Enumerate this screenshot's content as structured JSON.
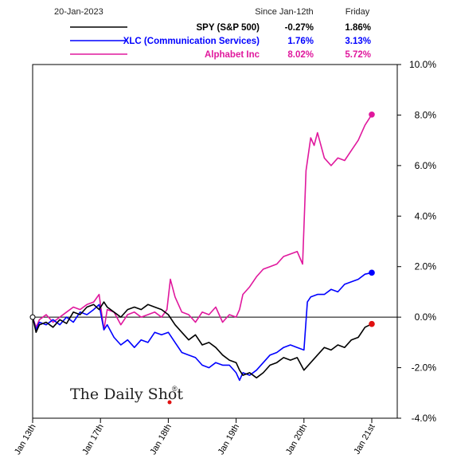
{
  "header": {
    "date": "20-Jan-2023",
    "col_since": "Since Jan-12th",
    "col_friday": "Friday"
  },
  "watermark": "The Daily Shot",
  "watermark_mark": "®",
  "chart_data": {
    "type": "line",
    "ylim": [
      -4.0,
      10.0
    ],
    "y_ticks": [
      "10.0%",
      "8.0%",
      "6.0%",
      "4.0%",
      "2.0%",
      "0.0%",
      "-2.0%",
      "-4.0%"
    ],
    "y_tick_values": [
      10,
      8,
      6,
      4,
      2,
      0,
      -2,
      -4
    ],
    "x_ticks": [
      "Jan 13th",
      "Jan 17th",
      "Jan 18th",
      "Jan 19th",
      "Jan 20th",
      "Jan 21st"
    ],
    "xlim": [
      0,
      5
    ],
    "grid": false,
    "legend_position": "top",
    "series": [
      {
        "name": "SPY (S&P 500)",
        "since": "-0.27%",
        "friday": "1.86%",
        "color": "#000000",
        "values": [
          [
            0,
            0
          ],
          [
            0.05,
            -0.6
          ],
          [
            0.1,
            -0.3
          ],
          [
            0.2,
            -0.2
          ],
          [
            0.3,
            -0.4
          ],
          [
            0.4,
            -0.1
          ],
          [
            0.5,
            -0.25
          ],
          [
            0.6,
            0.2
          ],
          [
            0.7,
            0.1
          ],
          [
            0.8,
            0.4
          ],
          [
            0.9,
            0.5
          ],
          [
            0.98,
            0.3
          ],
          [
            1.05,
            0.6
          ],
          [
            1.1,
            0.4
          ],
          [
            1.2,
            0.2
          ],
          [
            1.3,
            0.0
          ],
          [
            1.4,
            0.3
          ],
          [
            1.5,
            0.4
          ],
          [
            1.6,
            0.3
          ],
          [
            1.7,
            0.5
          ],
          [
            1.8,
            0.4
          ],
          [
            1.9,
            0.3
          ],
          [
            2.0,
            0.1
          ],
          [
            2.1,
            -0.3
          ],
          [
            2.2,
            -0.6
          ],
          [
            2.3,
            -0.9
          ],
          [
            2.4,
            -0.7
          ],
          [
            2.5,
            -1.1
          ],
          [
            2.6,
            -1.0
          ],
          [
            2.7,
            -1.2
          ],
          [
            2.8,
            -1.5
          ],
          [
            2.9,
            -1.7
          ],
          [
            3.0,
            -1.8
          ],
          [
            3.05,
            -2.1
          ],
          [
            3.1,
            -2.3
          ],
          [
            3.2,
            -2.2
          ],
          [
            3.3,
            -2.4
          ],
          [
            3.4,
            -2.2
          ],
          [
            3.5,
            -1.9
          ],
          [
            3.6,
            -1.8
          ],
          [
            3.7,
            -1.6
          ],
          [
            3.8,
            -1.7
          ],
          [
            3.9,
            -1.6
          ],
          [
            4.0,
            -2.1
          ],
          [
            4.1,
            -1.8
          ],
          [
            4.2,
            -1.5
          ],
          [
            4.3,
            -1.2
          ],
          [
            4.4,
            -1.3
          ],
          [
            4.5,
            -1.1
          ],
          [
            4.6,
            -1.2
          ],
          [
            4.7,
            -0.9
          ],
          [
            4.8,
            -0.8
          ],
          [
            4.9,
            -0.4
          ],
          [
            5.0,
            -0.27
          ]
        ]
      },
      {
        "name": "XLC (Communication Services)",
        "since": "1.76%",
        "friday": "3.13%",
        "color": "#0000ff",
        "values": [
          [
            0,
            0
          ],
          [
            0.05,
            -0.5
          ],
          [
            0.1,
            -0.2
          ],
          [
            0.2,
            -0.3
          ],
          [
            0.3,
            -0.1
          ],
          [
            0.4,
            -0.3
          ],
          [
            0.5,
            0.0
          ],
          [
            0.6,
            -0.2
          ],
          [
            0.7,
            0.2
          ],
          [
            0.8,
            0.1
          ],
          [
            0.9,
            0.3
          ],
          [
            0.98,
            0.5
          ],
          [
            1.05,
            -0.5
          ],
          [
            1.1,
            -0.3
          ],
          [
            1.2,
            -0.8
          ],
          [
            1.3,
            -1.1
          ],
          [
            1.4,
            -0.9
          ],
          [
            1.5,
            -1.2
          ],
          [
            1.6,
            -0.9
          ],
          [
            1.7,
            -1.0
          ],
          [
            1.8,
            -0.6
          ],
          [
            1.9,
            -0.7
          ],
          [
            2.0,
            -0.6
          ],
          [
            2.1,
            -1.0
          ],
          [
            2.2,
            -1.4
          ],
          [
            2.3,
            -1.5
          ],
          [
            2.4,
            -1.6
          ],
          [
            2.5,
            -1.9
          ],
          [
            2.6,
            -2.0
          ],
          [
            2.7,
            -1.8
          ],
          [
            2.8,
            -1.9
          ],
          [
            2.9,
            -1.9
          ],
          [
            3.0,
            -2.2
          ],
          [
            3.05,
            -2.5
          ],
          [
            3.1,
            -2.2
          ],
          [
            3.2,
            -2.3
          ],
          [
            3.3,
            -2.1
          ],
          [
            3.4,
            -1.8
          ],
          [
            3.5,
            -1.5
          ],
          [
            3.6,
            -1.4
          ],
          [
            3.7,
            -1.2
          ],
          [
            3.8,
            -1.1
          ],
          [
            3.9,
            -1.2
          ],
          [
            4.0,
            -1.3
          ],
          [
            4.05,
            0.6
          ],
          [
            4.1,
            0.8
          ],
          [
            4.2,
            0.9
          ],
          [
            4.3,
            0.9
          ],
          [
            4.4,
            1.1
          ],
          [
            4.5,
            1.0
          ],
          [
            4.6,
            1.3
          ],
          [
            4.7,
            1.4
          ],
          [
            4.8,
            1.5
          ],
          [
            4.9,
            1.7
          ],
          [
            5.0,
            1.76
          ]
        ]
      },
      {
        "name": "Alphabet Inc",
        "since": "8.02%",
        "friday": "5.72%",
        "color": "#e0189d",
        "values": [
          [
            0,
            0
          ],
          [
            0.05,
            -0.4
          ],
          [
            0.1,
            -0.1
          ],
          [
            0.2,
            0.1
          ],
          [
            0.3,
            -0.2
          ],
          [
            0.4,
            0.0
          ],
          [
            0.5,
            0.2
          ],
          [
            0.6,
            0.4
          ],
          [
            0.7,
            0.3
          ],
          [
            0.8,
            0.5
          ],
          [
            0.9,
            0.6
          ],
          [
            0.98,
            0.9
          ],
          [
            1.05,
            -0.5
          ],
          [
            1.1,
            0.3
          ],
          [
            1.2,
            0.2
          ],
          [
            1.3,
            -0.3
          ],
          [
            1.4,
            0.1
          ],
          [
            1.5,
            0.2
          ],
          [
            1.6,
            0.0
          ],
          [
            1.7,
            0.1
          ],
          [
            1.8,
            0.2
          ],
          [
            1.9,
            0.0
          ],
          [
            1.98,
            0.3
          ],
          [
            2.03,
            1.5
          ],
          [
            2.1,
            0.8
          ],
          [
            2.2,
            0.2
          ],
          [
            2.3,
            0.1
          ],
          [
            2.4,
            -0.2
          ],
          [
            2.5,
            0.2
          ],
          [
            2.6,
            0.1
          ],
          [
            2.7,
            0.4
          ],
          [
            2.8,
            -0.2
          ],
          [
            2.9,
            0.1
          ],
          [
            3.0,
            0.0
          ],
          [
            3.05,
            0.3
          ],
          [
            3.1,
            0.9
          ],
          [
            3.2,
            1.2
          ],
          [
            3.3,
            1.6
          ],
          [
            3.4,
            1.9
          ],
          [
            3.5,
            2.0
          ],
          [
            3.6,
            2.1
          ],
          [
            3.7,
            2.4
          ],
          [
            3.8,
            2.5
          ],
          [
            3.9,
            2.6
          ],
          [
            3.98,
            2.1
          ],
          [
            4.03,
            5.8
          ],
          [
            4.1,
            7.1
          ],
          [
            4.15,
            6.8
          ],
          [
            4.2,
            7.3
          ],
          [
            4.3,
            6.3
          ],
          [
            4.4,
            6.0
          ],
          [
            4.5,
            6.3
          ],
          [
            4.6,
            6.2
          ],
          [
            4.7,
            6.6
          ],
          [
            4.8,
            7.0
          ],
          [
            4.9,
            7.6
          ],
          [
            5.0,
            8.02
          ]
        ]
      }
    ]
  }
}
